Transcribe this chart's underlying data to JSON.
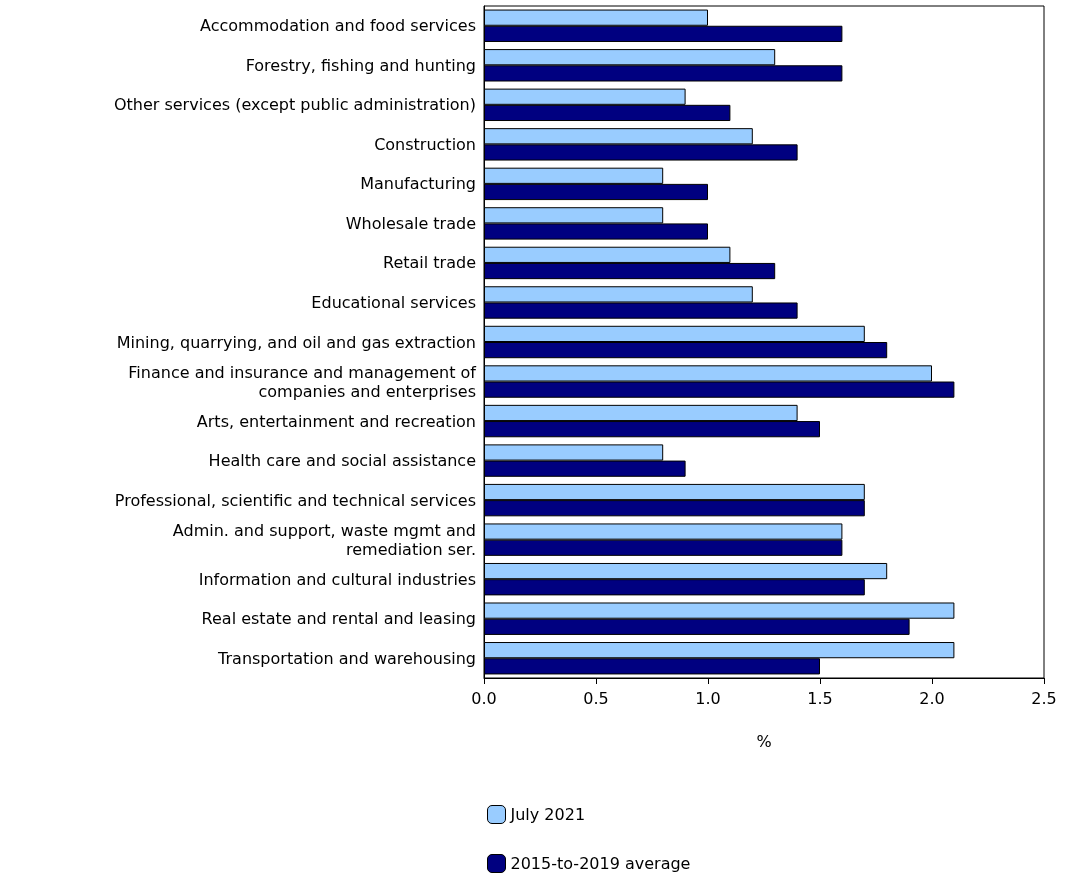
{
  "chart_data": {
    "type": "bar",
    "orientation": "horizontal",
    "xlabel": "%",
    "categories": [
      "Accommodation and food services",
      "Forestry, fishing and hunting",
      "Other services (except public administration)",
      "Construction",
      "Manufacturing",
      "Wholesale trade",
      "Retail trade",
      "Educational services",
      "Mining, quarrying, and oil and gas extraction",
      "Finance and insurance and management of\ncompanies and enterprises",
      "Arts, entertainment and recreation",
      "Health care and social assistance",
      "Professional, scientific and technical services",
      "Admin. and support, waste mgmt and\nremediation ser.",
      "Information and cultural industries",
      "Real estate and rental and leasing",
      "Transportation and warehousing"
    ],
    "series": [
      {
        "name": "July 2021",
        "color": "#99ccff",
        "values": [
          1.0,
          1.3,
          0.9,
          1.2,
          0.8,
          0.8,
          1.1,
          1.2,
          1.7,
          2.0,
          1.4,
          0.8,
          1.7,
          1.6,
          1.8,
          2.1,
          2.1
        ]
      },
      {
        "name": "2015-to-2019 average",
        "color": "#000080",
        "values": [
          1.6,
          1.6,
          1.1,
          1.4,
          1.0,
          1.0,
          1.3,
          1.4,
          1.8,
          2.1,
          1.5,
          0.9,
          1.7,
          1.6,
          1.7,
          1.9,
          1.5
        ]
      }
    ],
    "xlim": [
      0,
      2.5
    ],
    "xticks": [
      {
        "value": 0,
        "label": "0.0"
      },
      {
        "value": 0.5,
        "label": "0.5"
      },
      {
        "value": 1,
        "label": "1.0"
      },
      {
        "value": 1.5,
        "label": "1.5"
      },
      {
        "value": 2,
        "label": "2.0"
      },
      {
        "value": 2.5,
        "label": "2.5"
      }
    ],
    "grid": false,
    "legend": "bottom"
  }
}
